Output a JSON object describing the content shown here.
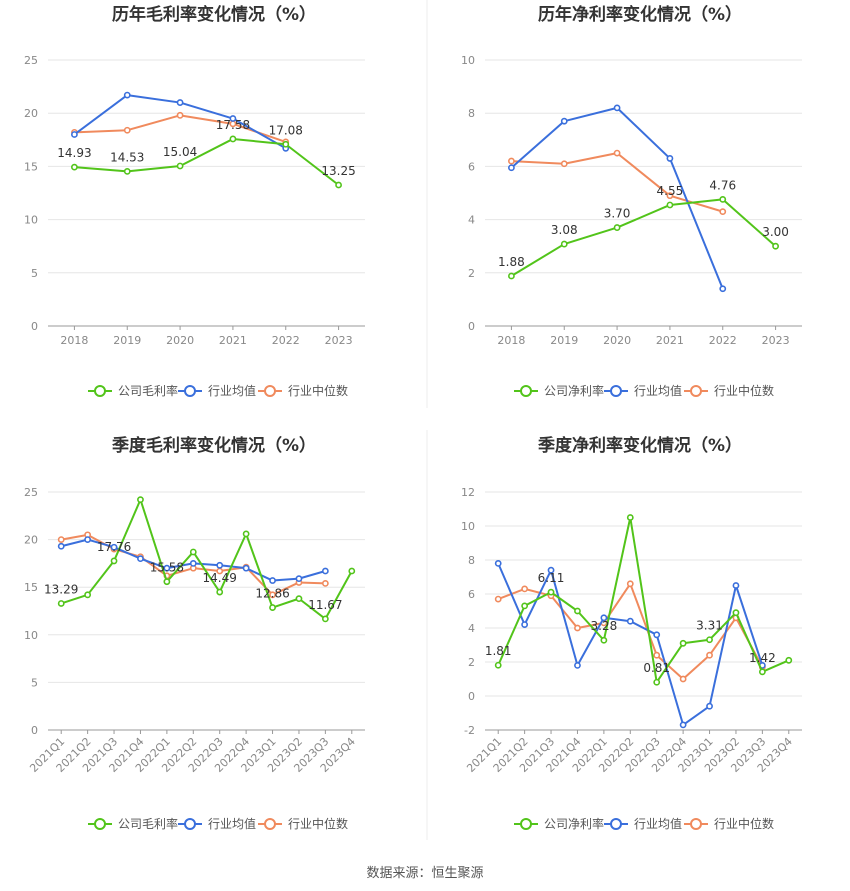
{
  "source_text": "数据来源：恒生聚源",
  "colors": {
    "company": "#52c41a",
    "industry_avg": "#3a6fdc",
    "industry_median": "#f08a5d",
    "grid": "#e6e6e6",
    "axis": "#999999"
  },
  "chart_data": [
    {
      "type": "line",
      "title": "历年毛利率变化情况（%）",
      "categories": [
        "2018",
        "2019",
        "2020",
        "2021",
        "2022",
        "2023"
      ],
      "ylim": [
        0,
        25
      ],
      "yticks": [
        0,
        5,
        10,
        15,
        20,
        25
      ],
      "series": [
        {
          "name": "公司毛利率",
          "key": "company",
          "values": [
            14.93,
            14.53,
            15.04,
            17.58,
            17.08,
            13.25
          ],
          "labels": [
            "14.93",
            "14.53",
            "15.04",
            "17.58",
            "17.08",
            "13.25"
          ]
        },
        {
          "name": "行业均值",
          "key": "industry_avg",
          "values": [
            18.0,
            21.7,
            21.0,
            19.5,
            16.7,
            null
          ]
        },
        {
          "name": "行业中位数",
          "key": "industry_median",
          "values": [
            18.2,
            18.4,
            19.8,
            19.0,
            17.3,
            null
          ]
        }
      ],
      "legend": [
        "公司毛利率",
        "行业均值",
        "行业中位数"
      ]
    },
    {
      "type": "line",
      "title": "历年净利率变化情况（%）",
      "categories": [
        "2018",
        "2019",
        "2020",
        "2021",
        "2022",
        "2023"
      ],
      "ylim": [
        0,
        10
      ],
      "yticks": [
        0,
        2,
        4,
        6,
        8,
        10
      ],
      "series": [
        {
          "name": "公司净利率",
          "key": "company",
          "values": [
            1.88,
            3.08,
            3.7,
            4.55,
            4.76,
            3.0
          ],
          "labels": [
            "1.88",
            "3.08",
            "3.70",
            "4.55",
            "4.76",
            "3.00"
          ]
        },
        {
          "name": "行业均值",
          "key": "industry_avg",
          "values": [
            5.95,
            7.7,
            8.2,
            6.3,
            1.4,
            null
          ]
        },
        {
          "name": "行业中位数",
          "key": "industry_median",
          "values": [
            6.2,
            6.1,
            6.5,
            4.9,
            4.3,
            null
          ]
        }
      ],
      "legend": [
        "公司净利率",
        "行业均值",
        "行业中位数"
      ]
    },
    {
      "type": "line",
      "title": "季度毛利率变化情况（%）",
      "categories": [
        "2021Q1",
        "2021Q2",
        "2021Q3",
        "2021Q4",
        "2022Q1",
        "2022Q2",
        "2022Q3",
        "2022Q4",
        "2023Q1",
        "2023Q2",
        "2023Q3",
        "2023Q4"
      ],
      "ylim": [
        0,
        25
      ],
      "yticks": [
        0,
        5,
        10,
        15,
        20,
        25
      ],
      "series": [
        {
          "name": "公司毛利率",
          "key": "company",
          "values": [
            13.29,
            14.2,
            17.76,
            24.2,
            15.58,
            18.7,
            14.49,
            20.6,
            12.86,
            13.8,
            11.67,
            16.7
          ],
          "labels": [
            "13.29",
            null,
            "17.76",
            null,
            "15.58",
            null,
            "14.49",
            null,
            "12.86",
            null,
            "11.67",
            null
          ]
        },
        {
          "name": "行业均值",
          "key": "industry_avg",
          "values": [
            19.3,
            20.0,
            19.2,
            18.0,
            17.0,
            17.5,
            17.3,
            17.0,
            15.7,
            15.9,
            16.7,
            null
          ]
        },
        {
          "name": "行业中位数",
          "key": "industry_median",
          "values": [
            20.0,
            20.5,
            19.0,
            18.2,
            16.2,
            17.0,
            16.7,
            17.1,
            14.2,
            15.5,
            15.4,
            null
          ]
        }
      ],
      "legend": [
        "公司毛利率",
        "行业均值",
        "行业中位数"
      ]
    },
    {
      "type": "line",
      "title": "季度净利率变化情况（%）",
      "categories": [
        "2021Q1",
        "2021Q2",
        "2021Q3",
        "2021Q4",
        "2022Q1",
        "2022Q2",
        "2022Q3",
        "2022Q4",
        "2023Q1",
        "2023Q2",
        "2023Q3",
        "2023Q4"
      ],
      "ylim": [
        -2,
        12
      ],
      "yticks": [
        -2,
        0,
        2,
        4,
        6,
        8,
        10,
        12
      ],
      "series": [
        {
          "name": "公司净利率",
          "key": "company",
          "values": [
            1.81,
            5.3,
            6.11,
            5.0,
            3.28,
            10.5,
            0.81,
            3.1,
            3.31,
            4.9,
            1.42,
            2.1
          ],
          "labels": [
            "1.81",
            null,
            "6.11",
            null,
            "3.28",
            null,
            "0.81",
            null,
            "3.31",
            null,
            "1.42",
            null
          ]
        },
        {
          "name": "行业均值",
          "key": "industry_avg",
          "values": [
            7.8,
            4.2,
            7.4,
            1.8,
            4.6,
            4.4,
            3.6,
            -1.7,
            -0.6,
            6.5,
            1.8,
            null
          ]
        },
        {
          "name": "行业中位数",
          "key": "industry_median",
          "values": [
            5.7,
            6.3,
            5.9,
            4.0,
            4.3,
            6.6,
            2.4,
            1.0,
            2.4,
            4.6,
            1.7,
            null
          ]
        }
      ],
      "legend": [
        "公司净利率",
        "行业均值",
        "行业中位数"
      ]
    }
  ]
}
